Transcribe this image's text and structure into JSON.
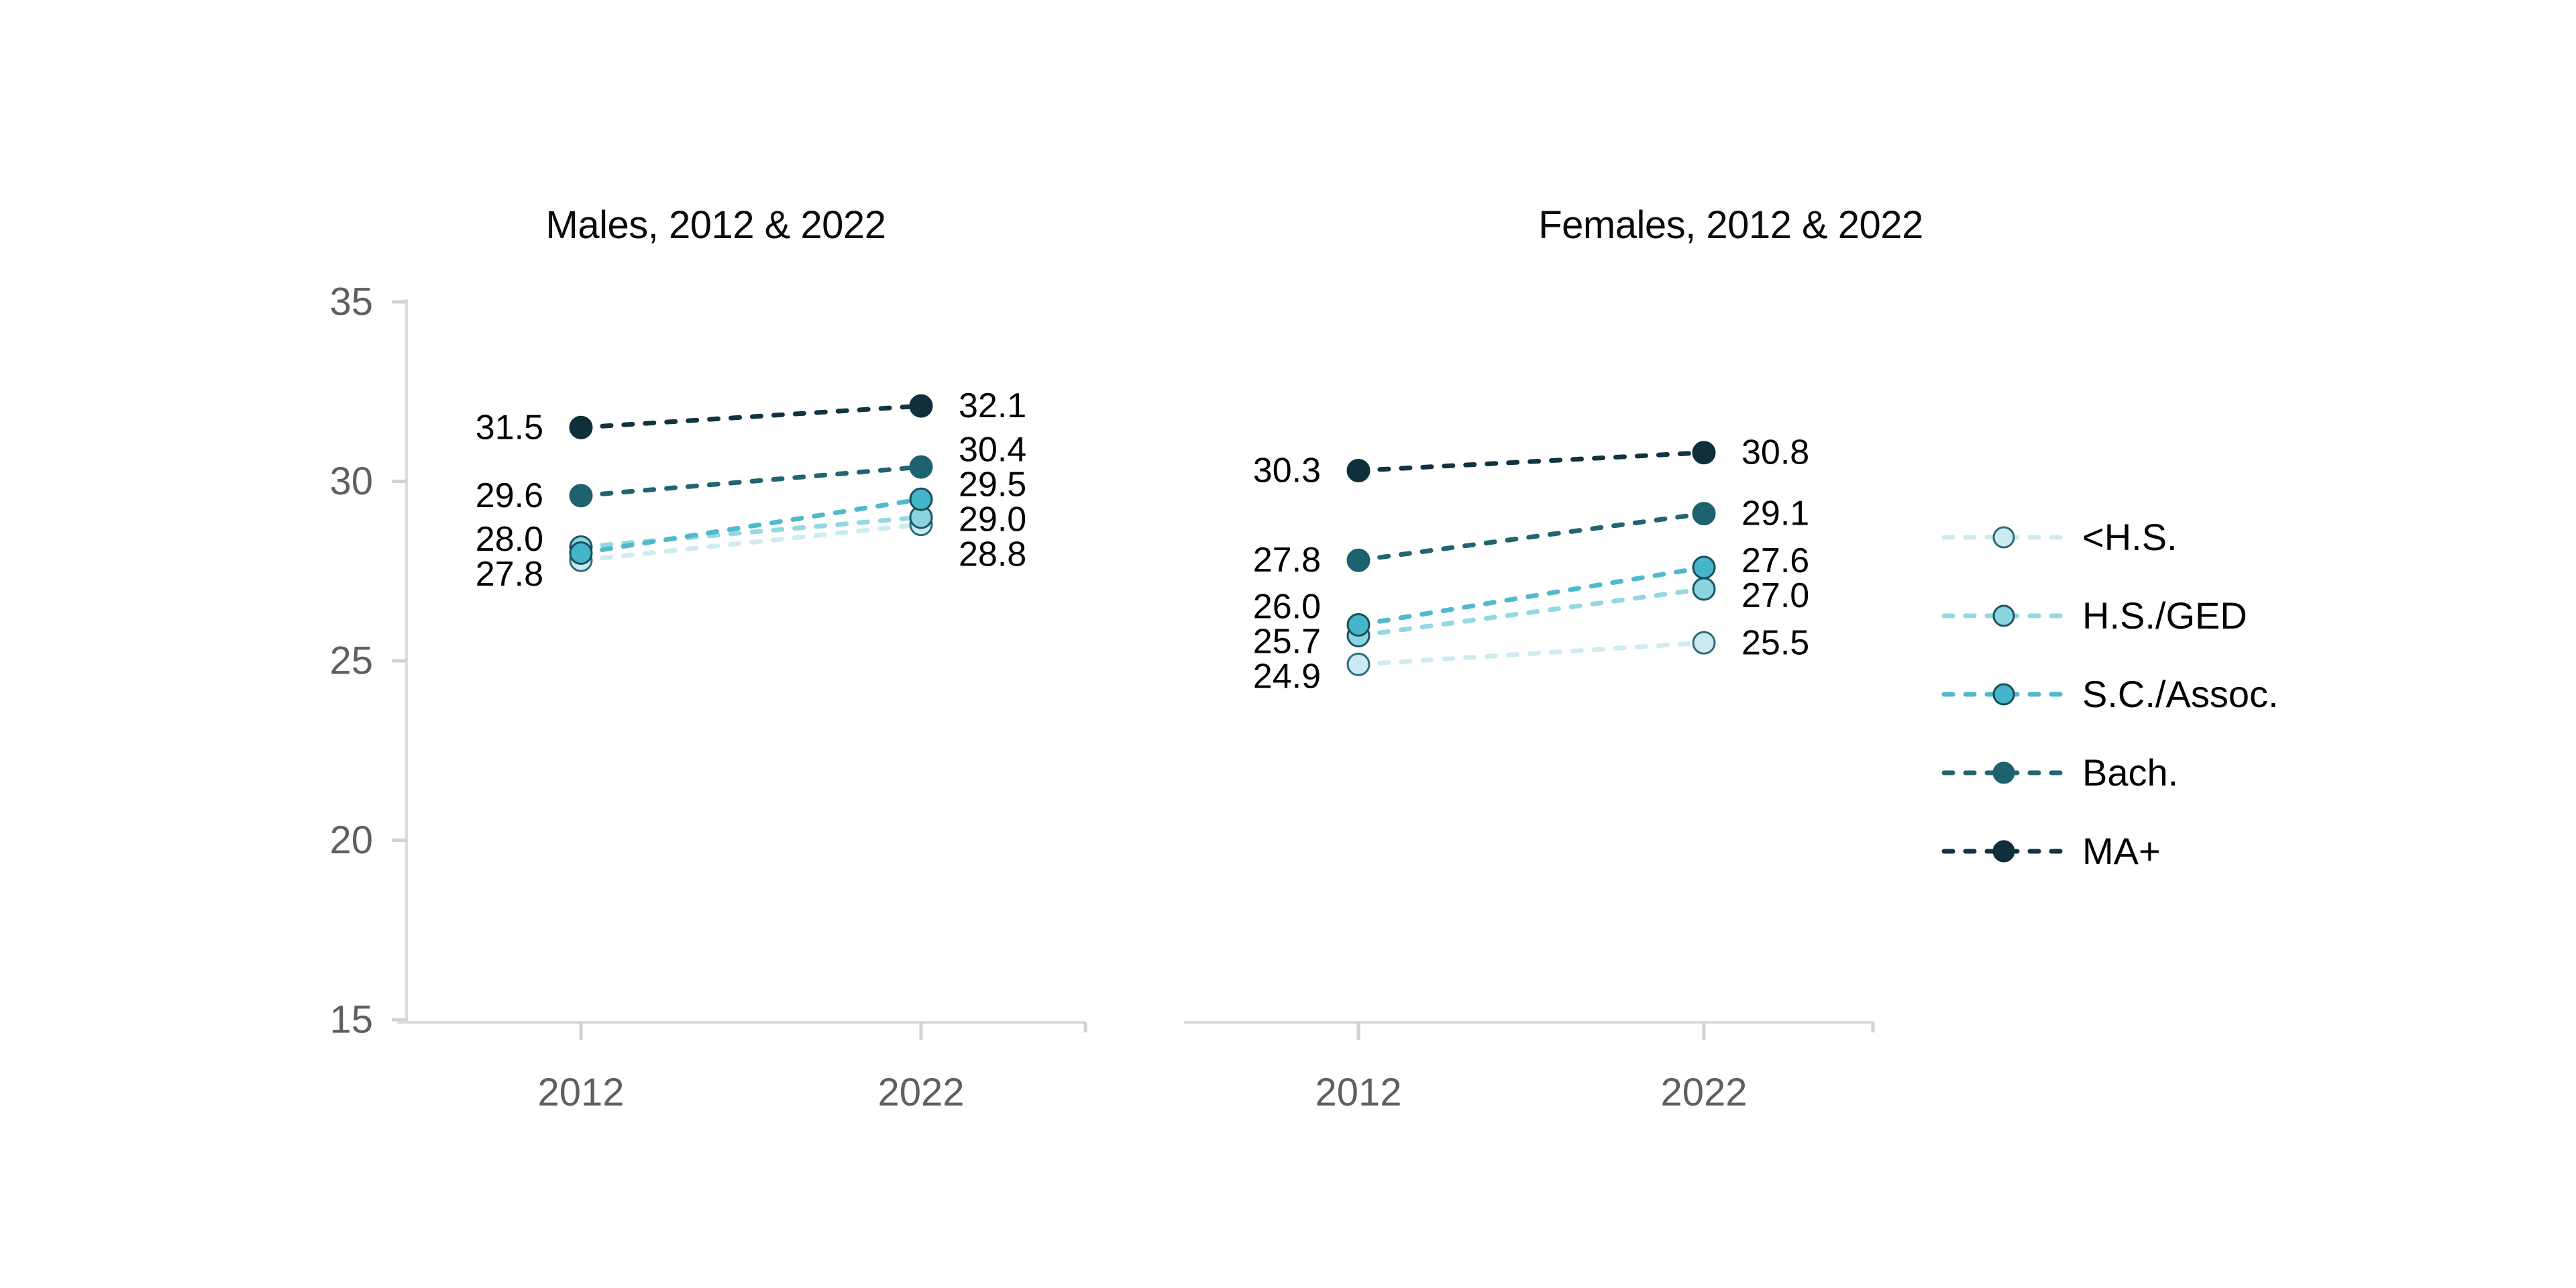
{
  "figure": {
    "background": "#ffffff"
  },
  "legend": {
    "items": [
      {
        "label": "<H.S."
      },
      {
        "label": "H.S./GED"
      },
      {
        "label": "S.C./Assoc."
      },
      {
        "label": "Bach."
      },
      {
        "label": "MA+"
      }
    ]
  },
  "series_styles": [
    {
      "name": "<H.S.",
      "fill": "#cbe9f1",
      "line": "#cfebf2",
      "outline": "#2c6b7a"
    },
    {
      "name": "H.S./GED",
      "fill": "#8ad4e0",
      "line": "#93d8e3",
      "outline": "#1d5563"
    },
    {
      "name": "S.C./Assoc.",
      "fill": "#45b6c9",
      "line": "#4fbacc",
      "outline": "#174e5a"
    },
    {
      "name": "Bach.",
      "fill": "#1e616f",
      "line": "#226470",
      "outline": "#1e616f"
    },
    {
      "name": "MA+",
      "fill": "#0f2f3b",
      "line": "#123340",
      "outline": "#0f2f3b"
    }
  ],
  "axis_style": {
    "line_color": "#dcdcdc",
    "tick_color": "#d2d2d2",
    "label_color": "#5f5f5f"
  },
  "chart_data": [
    {
      "type": "line",
      "title": "Males, 2012 & 2022",
      "categories": [
        "2012",
        "2022"
      ],
      "ylim": [
        15,
        35
      ],
      "yticks": [
        15,
        20,
        25,
        30,
        35
      ],
      "grid": false,
      "y_axis_shown": true,
      "legend_position": "right",
      "series": [
        {
          "name": "<H.S.",
          "values": [
            27.8,
            28.8
          ]
        },
        {
          "name": "H.S./GED",
          "values": [
            28.0,
            29.0
          ]
        },
        {
          "name": "S.C./Assoc.",
          "values": [
            28.0,
            29.5
          ]
        },
        {
          "name": "Bach.",
          "values": [
            29.6,
            30.4
          ]
        },
        {
          "name": "MA+",
          "values": [
            31.5,
            32.1
          ]
        }
      ]
    },
    {
      "type": "line",
      "title": "Females, 2012 & 2022",
      "categories": [
        "2012",
        "2022"
      ],
      "ylim": [
        15,
        35
      ],
      "yticks": [
        15,
        20,
        25,
        30,
        35
      ],
      "grid": false,
      "y_axis_shown": false,
      "legend_position": "right",
      "series": [
        {
          "name": "<H.S.",
          "values": [
            24.9,
            25.5
          ]
        },
        {
          "name": "H.S./GED",
          "values": [
            25.7,
            27.0
          ]
        },
        {
          "name": "S.C./Assoc.",
          "values": [
            26.0,
            27.6
          ]
        },
        {
          "name": "Bach.",
          "values": [
            27.8,
            29.1
          ]
        },
        {
          "name": "MA+",
          "values": [
            30.3,
            30.8
          ]
        }
      ]
    }
  ]
}
